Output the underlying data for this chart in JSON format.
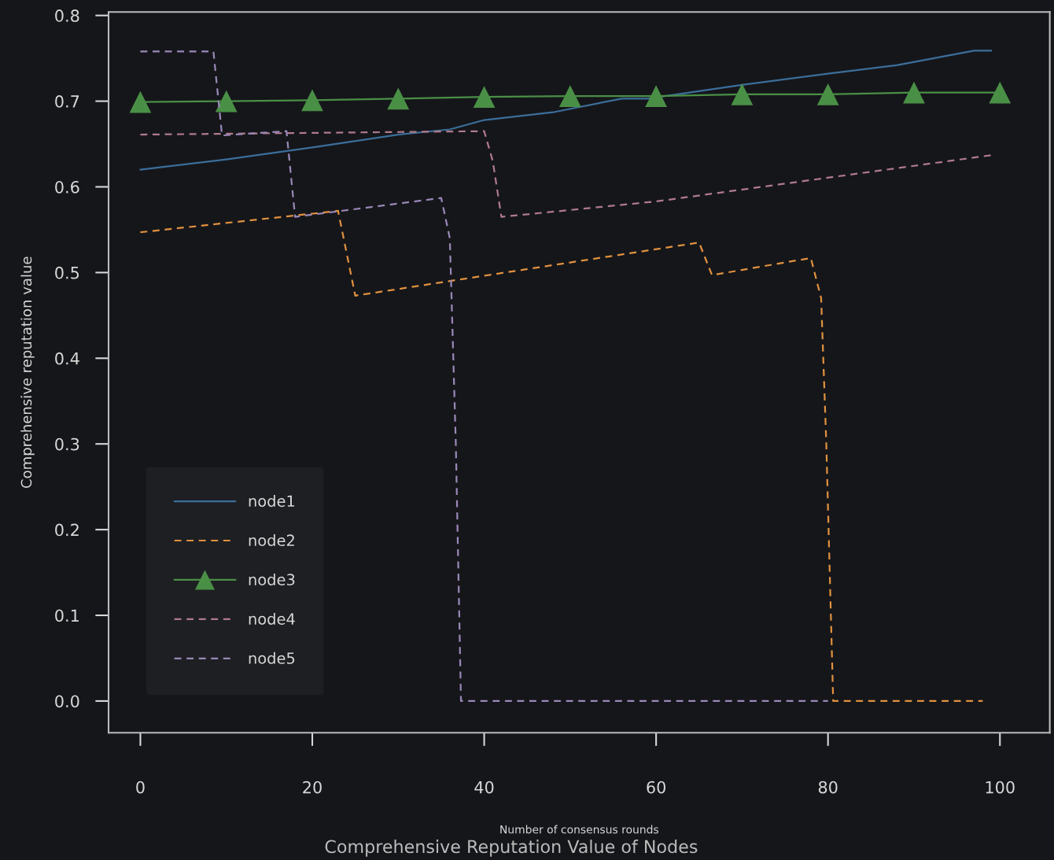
{
  "chart_data": {
    "type": "line",
    "title": "Comprehensive Reputation Value of Nodes",
    "xlabel": "Number of consensus rounds",
    "ylabel": "Comprehensive reputation value",
    "xlim": [
      -3.7,
      105.8
    ],
    "ylim": [
      -0.037,
      0.804
    ],
    "xticks": [
      0,
      20,
      40,
      60,
      80,
      100
    ],
    "yticks": [
      {
        "value": 0,
        "label": "0.0"
      },
      0.1,
      0.2,
      0.3,
      0.4,
      0.5,
      0.6,
      0.7,
      0.8
    ],
    "grid": false,
    "legend": "bottom left",
    "series": [
      {
        "name": "node1",
        "color": "#3b6e9a",
        "line_style": "solid",
        "marker": "none",
        "x": [
          0,
          10,
          20,
          30,
          36,
          40,
          48,
          56,
          59,
          70,
          80,
          88,
          97,
          99
        ],
        "values": [
          0.62,
          0.632,
          0.646,
          0.661,
          0.667,
          0.678,
          0.687,
          0.703,
          0.703,
          0.719,
          0.732,
          0.742,
          0.759,
          0.759
        ]
      },
      {
        "name": "node2",
        "color": "#e0913f",
        "line_style": "dashed",
        "marker": "none",
        "x": [
          0,
          23,
          25,
          65,
          66.5,
          78,
          79.2,
          79.8,
          80.6,
          98
        ],
        "values": [
          0.547,
          0.572,
          0.473,
          0.535,
          0.497,
          0.517,
          0.47,
          0.3,
          0,
          0
        ]
      },
      {
        "name": "node3",
        "color": "#4a8f46",
        "line_style": "solid",
        "marker": "triangle",
        "x": [
          0,
          10,
          20,
          30,
          40,
          50,
          60,
          70,
          80,
          90,
          100
        ],
        "values": [
          0.699,
          0.7,
          0.701,
          0.703,
          0.705,
          0.706,
          0.706,
          0.708,
          0.708,
          0.71,
          0.71
        ]
      },
      {
        "name": "node4",
        "color": "#b07a8c",
        "line_style": "dashed",
        "marker": "none",
        "x": [
          0,
          40,
          41,
          42,
          60,
          99
        ],
        "values": [
          0.661,
          0.665,
          0.63,
          0.565,
          0.583,
          0.637
        ]
      },
      {
        "name": "node5",
        "color": "#9a88b8",
        "line_style": "dashed",
        "marker": "none",
        "x": [
          0,
          8.5,
          9.5,
          17,
          18,
          35,
          36,
          36.7,
          37.3,
          80
        ],
        "values": [
          0.758,
          0.758,
          0.66,
          0.665,
          0.565,
          0.587,
          0.54,
          0.3,
          0,
          0
        ]
      }
    ]
  }
}
